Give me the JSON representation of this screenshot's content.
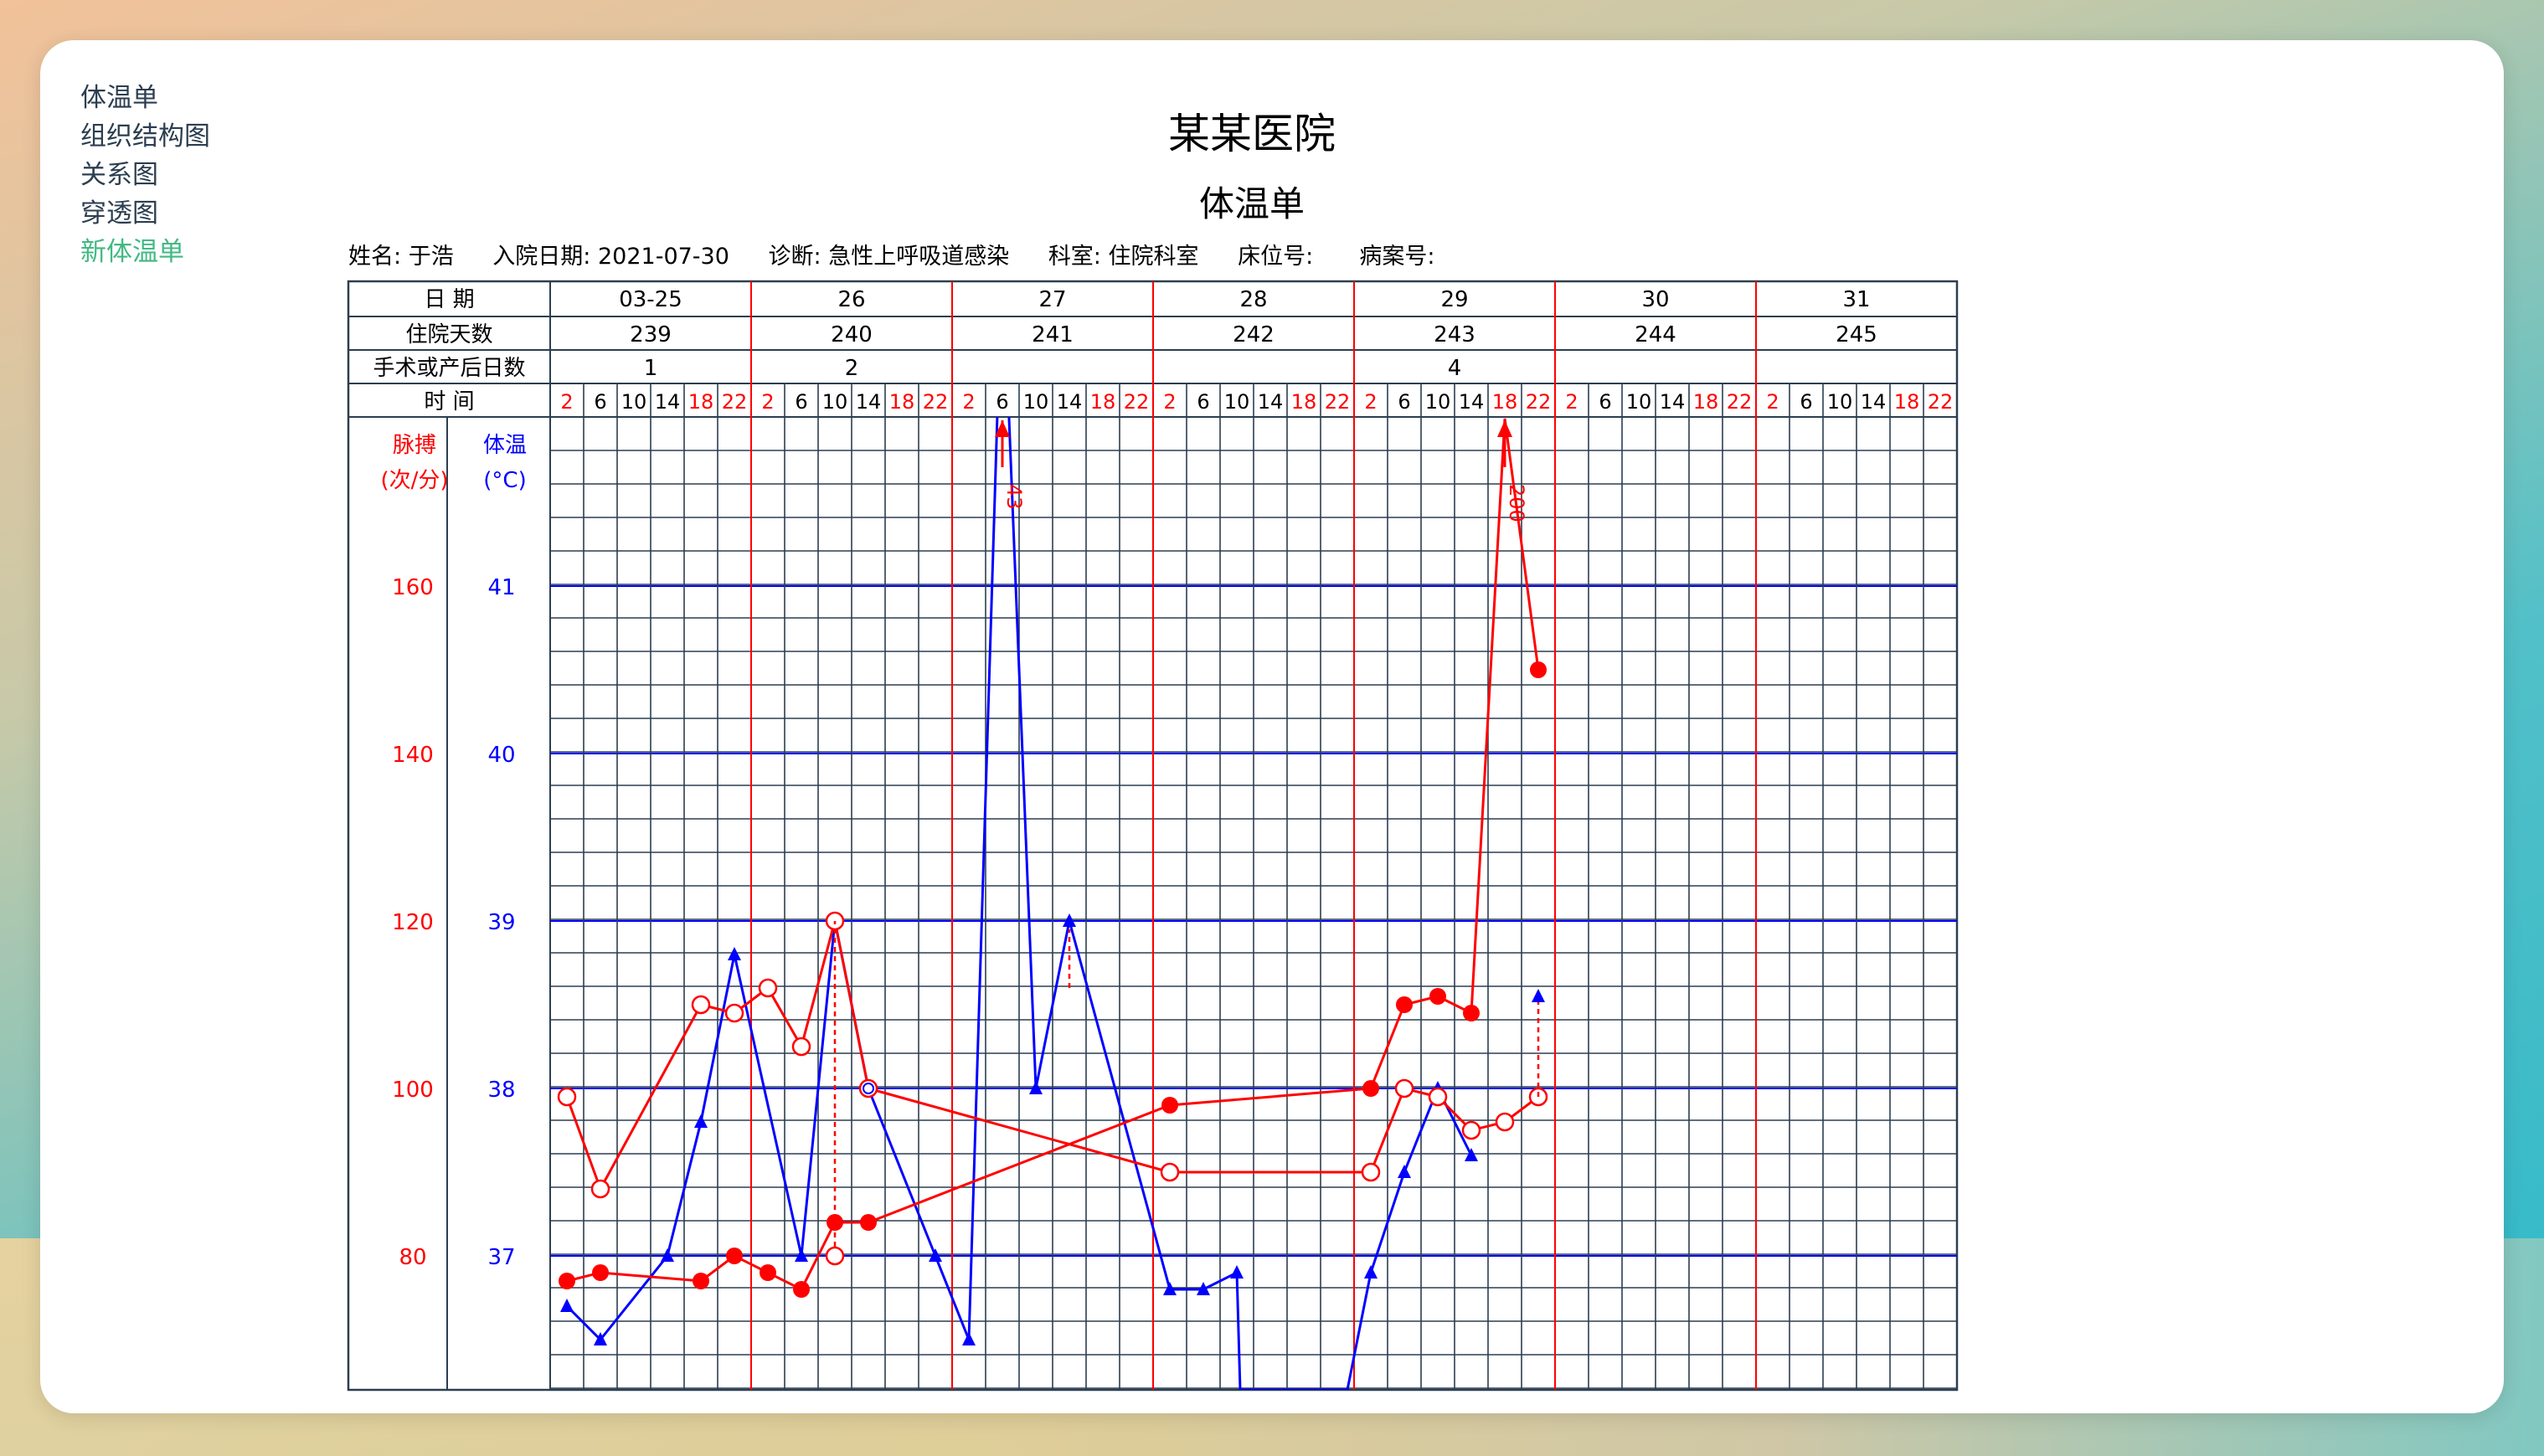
{
  "nav": {
    "items": [
      {
        "label": "体温单",
        "active": false
      },
      {
        "label": "组织结构图",
        "active": false
      },
      {
        "label": "关系图",
        "active": false
      },
      {
        "label": "穿透图",
        "active": false
      },
      {
        "label": "新体温单",
        "active": true
      }
    ]
  },
  "hospital": "某某医院",
  "form_title": "体温单",
  "patient": {
    "name_label": "姓名:",
    "name": "于浩",
    "admit_label": "入院日期:",
    "admit_date": "2021-07-30",
    "diag_label": "诊断:",
    "diagnosis": "急性上呼吸道感染",
    "dept_label": "科室:",
    "dept": "住院科室",
    "bed_label": "床位号:",
    "bed": "",
    "case_label": "病案号:",
    "case_no": ""
  },
  "table": {
    "row_date": "日 期",
    "row_days": "住院天数",
    "row_op": "手术或产后日数",
    "row_time": "时 间",
    "dates": [
      "03-25",
      "26",
      "27",
      "28",
      "29",
      "30",
      "31"
    ],
    "hospital_days": [
      "239",
      "240",
      "241",
      "242",
      "243",
      "244",
      "245"
    ],
    "op_days": [
      "1",
      "2",
      "",
      "",
      "4",
      "",
      ""
    ],
    "times": [
      "2",
      "6",
      "10",
      "14",
      "18",
      "22"
    ],
    "pulse_label": "脉搏",
    "pulse_unit": "(次/分)",
    "temp_label": "体温",
    "temp_unit": "(°C)",
    "pulse_ticks": [
      "160",
      "140",
      "120",
      "100",
      "80"
    ],
    "temp_ticks": [
      "41",
      "40",
      "39",
      "38",
      "37"
    ],
    "pulse_off_label": "43",
    "pulse_off_label2": "200"
  },
  "colors": {
    "pulse": "#ff0000",
    "temp": "#0000ff",
    "grid": "#2c3e50",
    "accent": "#42b983"
  },
  "chart_data": {
    "type": "line",
    "x_slots": "42 time slots = 7 days x 6 (2,6,10,14,18,22)",
    "series": [
      {
        "name": "脉搏",
        "color": "#ff0000",
        "y_unit": "次/分",
        "points": [
          {
            "slot": 0,
            "value": 77,
            "marker": "filled"
          },
          {
            "slot": 1,
            "value": 78,
            "marker": "filled"
          },
          {
            "slot": 4,
            "value": 77,
            "marker": "filled"
          },
          {
            "slot": 5,
            "value": 80,
            "marker": "filled"
          },
          {
            "slot": 6,
            "value": 78,
            "marker": "filled"
          },
          {
            "slot": 7,
            "value": 76,
            "marker": "filled"
          },
          {
            "slot": 8,
            "value": 84,
            "marker": "filled"
          },
          {
            "slot": 9,
            "value": 84,
            "marker": "filled"
          },
          {
            "slot": 18,
            "value": 98,
            "marker": "filled"
          },
          {
            "slot": 24,
            "value": 100,
            "marker": "filled"
          },
          {
            "slot": 25,
            "value": 110,
            "marker": "filled"
          },
          {
            "slot": 26,
            "value": 111,
            "marker": "filled"
          },
          {
            "slot": 27,
            "value": 109,
            "marker": "filled"
          },
          {
            "slot": 28,
            "value": 200,
            "marker": "off-chart-up"
          },
          {
            "slot": 29,
            "value": 150,
            "marker": "filled"
          }
        ]
      },
      {
        "name": "体温",
        "color": "#0000ff",
        "y_unit": "°C",
        "points": [
          {
            "slot": 0,
            "value": 36.7
          },
          {
            "slot": 1,
            "value": 36.5
          },
          {
            "slot": 3,
            "value": 37.0
          },
          {
            "slot": 4,
            "value": 37.8
          },
          {
            "slot": 5,
            "value": 38.8
          },
          {
            "slot": 7,
            "value": 37.0
          },
          {
            "slot": 8,
            "value": 39.0
          },
          {
            "slot": 9,
            "value": 38.0
          },
          {
            "slot": 11,
            "value": 37.0
          },
          {
            "slot": 12,
            "value": 36.5
          },
          {
            "slot": 13,
            "value": 43.0
          },
          {
            "slot": 14,
            "value": 38.0
          },
          {
            "slot": 15,
            "value": 39.0
          },
          {
            "slot": 18,
            "value": 36.8
          },
          {
            "slot": 19,
            "value": 36.8
          },
          {
            "slot": 20,
            "value": 36.9
          },
          {
            "slot": 20.1,
            "value": 36.2
          },
          {
            "slot": 23.3,
            "value": 36.2
          },
          {
            "slot": 24,
            "value": 36.9
          },
          {
            "slot": 25,
            "value": 37.5
          },
          {
            "slot": 26,
            "value": 38.0
          },
          {
            "slot": 27,
            "value": 37.6
          }
        ]
      },
      {
        "name": "",
        "color": "#ff0000",
        "y_unit": "次/分",
        "points": [
          {
            "slot": 0,
            "value": 99
          },
          {
            "slot": 1,
            "value": 88
          },
          {
            "slot": 4,
            "value": 110
          },
          {
            "slot": 5,
            "value": 109
          },
          {
            "slot": 6,
            "value": 112
          },
          {
            "slot": 7,
            "value": 105
          },
          {
            "slot": 8,
            "value": 120
          },
          {
            "slot": 9,
            "value": 100
          },
          {
            "slot": 18,
            "value": 90
          },
          {
            "slot": 24,
            "value": 90
          },
          {
            "slot": 25,
            "value": 100
          },
          {
            "slot": 26,
            "value": 99
          },
          {
            "slot": 27,
            "value": 95
          },
          {
            "slot": 28,
            "value": 96
          },
          {
            "slot": 29,
            "value": 99
          }
        ]
      }
    ],
    "pulse_ylim": [
      60,
      180
    ],
    "temp_ylim": [
      35,
      43
    ]
  }
}
